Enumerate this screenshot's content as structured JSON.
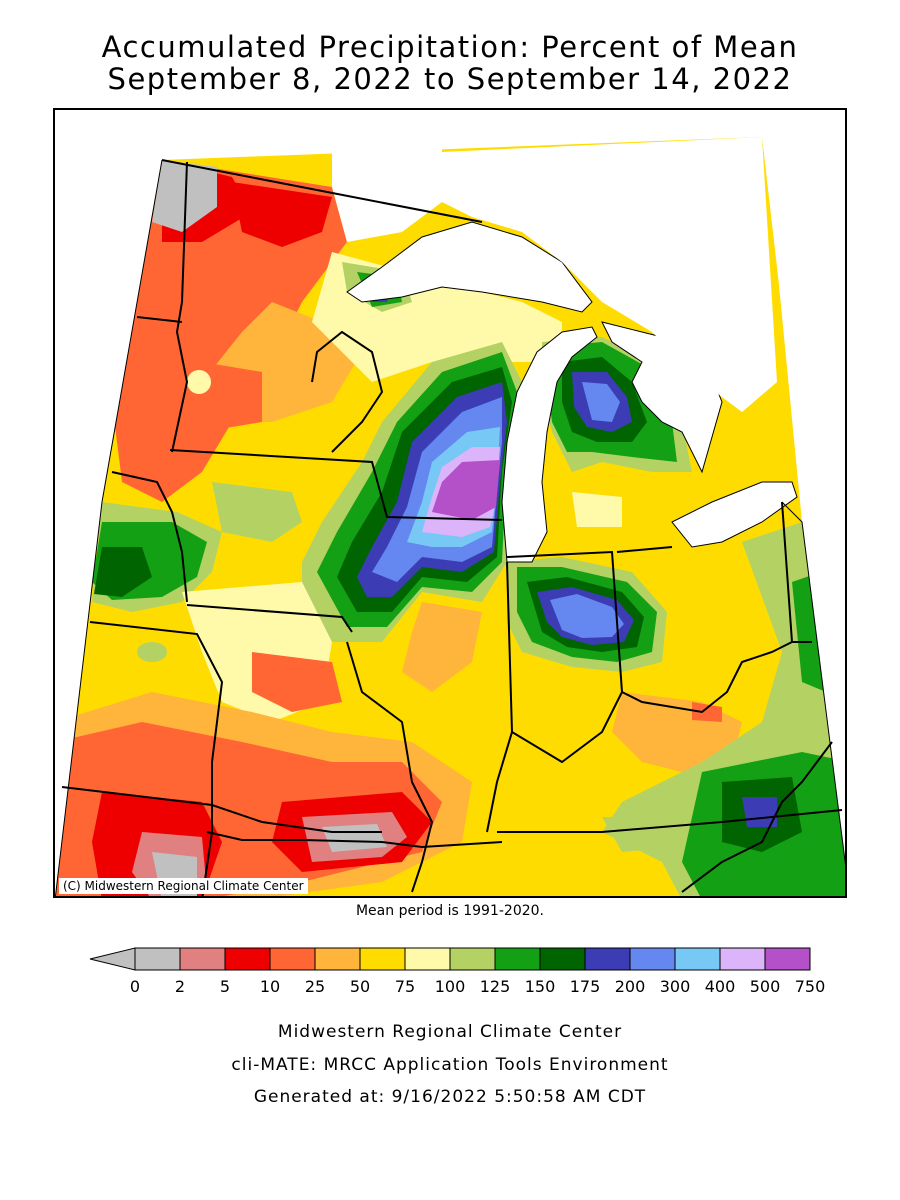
{
  "title_line1": "Accumulated Precipitation: Percent of Mean",
  "title_line2": "September 8, 2022 to September 14, 2022",
  "copyright": "(C) Midwestern Regional Climate Center",
  "mean_period": "Mean period is 1991-2020.",
  "legend": {
    "bins": [
      {
        "label": "0",
        "color": "#c0c0c0"
      },
      {
        "label": "2",
        "color": "#e08080"
      },
      {
        "label": "5",
        "color": "#ee0000"
      },
      {
        "label": "10",
        "color": "#ff6633"
      },
      {
        "label": "25",
        "color": "#ffb43c"
      },
      {
        "label": "50",
        "color": "#ffdc00"
      },
      {
        "label": "75",
        "color": "#fffaaa"
      },
      {
        "label": "100",
        "color": "#b4d264"
      },
      {
        "label": "125",
        "color": "#14a014"
      },
      {
        "label": "150",
        "color": "#006400"
      },
      {
        "label": "175",
        "color": "#3c3cb4"
      },
      {
        "label": "200",
        "color": "#6487f0"
      },
      {
        "label": "300",
        "color": "#78c8f5"
      },
      {
        "label": "400",
        "color": "#dcb4fa"
      },
      {
        "label": "500",
        "color": "#b450c8"
      }
    ],
    "end_label": "750"
  },
  "footer": {
    "line1": "Midwestern Regional Climate Center",
    "line2": "cli-MATE: MRCC Application Tools Environment",
    "line3": "Generated at: 9/16/2022 5:50:58 AM CDT"
  }
}
